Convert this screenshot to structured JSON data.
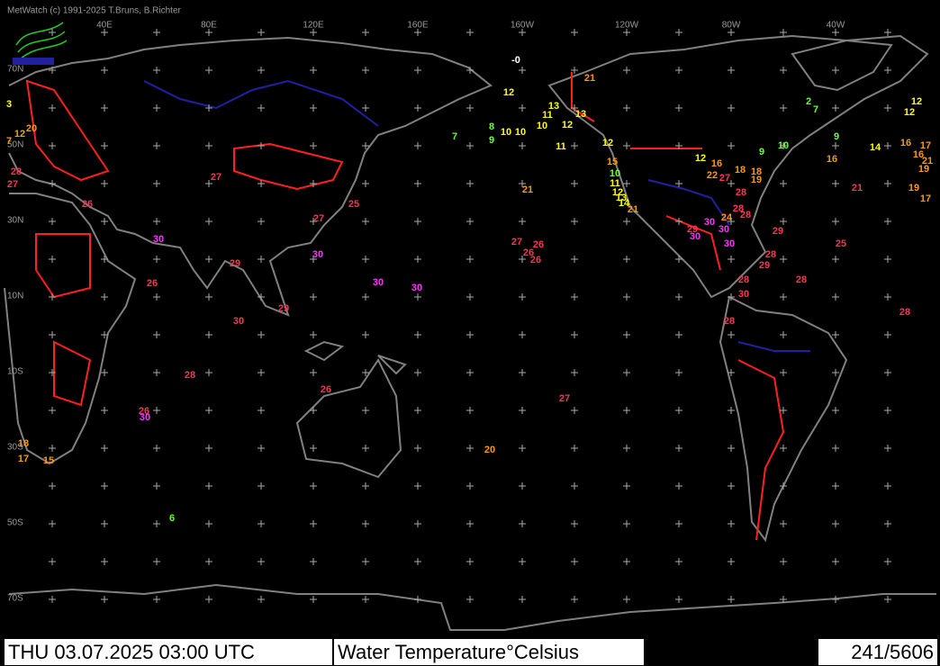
{
  "header": {
    "copyright": "MetWatch  (c) 1991-2025 T.Bruns, B.Richter"
  },
  "map": {
    "longitude_labels": [
      "40E",
      "80E",
      "120E",
      "160E",
      "160W",
      "120W",
      "80W",
      "40W"
    ],
    "latitude_labels": [
      "70N",
      "50N",
      "30N",
      "10N",
      "10S",
      "30S",
      "50S",
      "70S"
    ],
    "groups": [
      {
        "color": "#ffffff",
        "readings": [
          {
            "value": 0,
            "label": "-0"
          }
        ]
      },
      {
        "color": "#66ff33",
        "readings": [
          8,
          9,
          7,
          10,
          9,
          10,
          2,
          7,
          9,
          6
        ]
      },
      {
        "color": "#ffff00",
        "readings": [
          12,
          13,
          13,
          11,
          12,
          10,
          10,
          10,
          11,
          12,
          12,
          11,
          12,
          13,
          14,
          14,
          12,
          12,
          3
        ]
      },
      {
        "color": "#ff9900",
        "readings": [
          21,
          15,
          21,
          16,
          18,
          18,
          22,
          19,
          24,
          16,
          19,
          17,
          16,
          17,
          16,
          21,
          19,
          21,
          20,
          18,
          17,
          15,
          20,
          12,
          7
        ]
      },
      {
        "color": "#ff3355",
        "readings": [
          27,
          28,
          28,
          28,
          29,
          29,
          28,
          29,
          28,
          28,
          30,
          28,
          25,
          28,
          21,
          27,
          27,
          25,
          27,
          26,
          26,
          26,
          29,
          30,
          26,
          28,
          26,
          27,
          26,
          29,
          26,
          28,
          27
        ]
      },
      {
        "color": "#ff33ff",
        "readings": [
          30,
          30,
          30,
          30,
          30,
          30,
          30,
          30,
          30
        ]
      }
    ]
  },
  "footer": {
    "datetime": "THU 03.07.2025 03:00 UTC",
    "parameter": "Water Temperature°Celsius",
    "counter": "241/5606"
  }
}
